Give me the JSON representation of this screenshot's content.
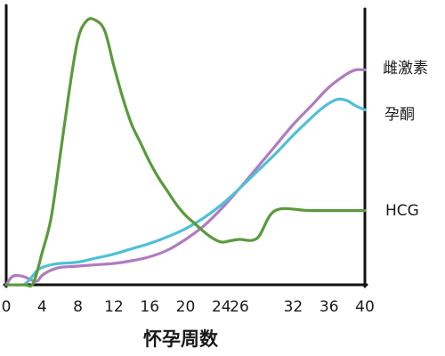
{
  "chart_data": {
    "type": "line",
    "title": "",
    "xlabel": "怀孕周数",
    "ylabel": "",
    "x_ticks": [
      0,
      4,
      8,
      12,
      16,
      20,
      24,
      26,
      32,
      36,
      40
    ],
    "xlim": [
      0,
      40
    ],
    "ylim": [
      0,
      100
    ],
    "grid": false,
    "legend": "inline-right",
    "series": [
      {
        "name": "HCG",
        "color": "#5a9a3c",
        "points": [
          [
            0,
            0
          ],
          [
            2,
            0
          ],
          [
            3,
            0.5
          ],
          [
            4,
            12
          ],
          [
            5,
            25
          ],
          [
            6,
            48
          ],
          [
            7,
            72
          ],
          [
            8,
            92
          ],
          [
            9,
            99
          ],
          [
            10,
            99
          ],
          [
            11,
            95
          ],
          [
            12,
            82
          ],
          [
            13,
            70
          ],
          [
            14,
            60
          ],
          [
            15,
            53
          ],
          [
            16,
            46
          ],
          [
            17,
            40
          ],
          [
            18,
            35
          ],
          [
            19,
            30
          ],
          [
            20,
            26
          ],
          [
            21,
            23
          ],
          [
            22,
            20
          ],
          [
            23,
            17.5
          ],
          [
            24,
            16
          ],
          [
            25,
            16.5
          ],
          [
            26,
            17
          ],
          [
            28,
            17.5
          ],
          [
            30,
            27.8
          ],
          [
            34,
            27.8
          ],
          [
            40,
            27.8
          ]
        ]
      },
      {
        "name": "雌激素",
        "color": "#b07cc0",
        "points": [
          [
            0,
            0
          ],
          [
            0.5,
            2.5
          ],
          [
            1,
            3.5
          ],
          [
            2,
            3
          ],
          [
            3,
            1.5
          ],
          [
            3.5,
            1.5
          ],
          [
            4,
            3.5
          ],
          [
            5,
            5.5
          ],
          [
            6,
            6.5
          ],
          [
            8,
            7
          ],
          [
            10,
            7.5
          ],
          [
            12,
            8
          ],
          [
            14,
            9
          ],
          [
            16,
            10.5
          ],
          [
            18,
            13
          ],
          [
            20,
            17
          ],
          [
            22,
            22
          ],
          [
            24,
            28.5
          ],
          [
            26,
            36
          ],
          [
            28,
            44
          ],
          [
            30,
            52
          ],
          [
            32,
            60
          ],
          [
            34,
            67
          ],
          [
            36,
            74
          ],
          [
            38,
            79
          ],
          [
            39,
            80.5
          ],
          [
            40,
            80.5
          ]
        ]
      },
      {
        "name": "孕酮",
        "color": "#4fc0d6",
        "points": [
          [
            2,
            0
          ],
          [
            2.5,
            1.5
          ],
          [
            3,
            3.5
          ],
          [
            3.5,
            5.5
          ],
          [
            4,
            6.5
          ],
          [
            5,
            7.5
          ],
          [
            6,
            8
          ],
          [
            8,
            8.5
          ],
          [
            10,
            10
          ],
          [
            12,
            11.5
          ],
          [
            14,
            13.5
          ],
          [
            16,
            15.5
          ],
          [
            18,
            18
          ],
          [
            20,
            21
          ],
          [
            22,
            25
          ],
          [
            24,
            30
          ],
          [
            26,
            36
          ],
          [
            28,
            42.5
          ],
          [
            30,
            49
          ],
          [
            32,
            56
          ],
          [
            34,
            62.5
          ],
          [
            35,
            65.5
          ],
          [
            36,
            68
          ],
          [
            37,
            69.5
          ],
          [
            38,
            69
          ],
          [
            39,
            67
          ],
          [
            40,
            65.5
          ]
        ]
      }
    ]
  }
}
